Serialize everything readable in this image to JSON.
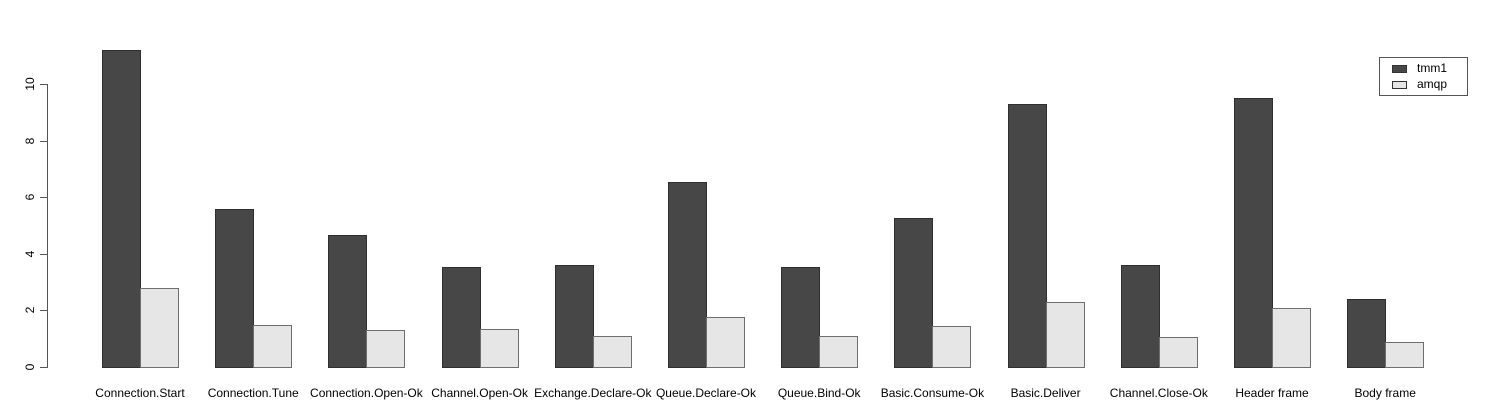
{
  "chart_data": {
    "type": "bar",
    "title": "",
    "xlabel": "",
    "ylabel": "",
    "categories": [
      "Connection.Start",
      "Connection.Tune",
      "Connection.Open-Ok",
      "Channel.Open-Ok",
      "Exchange.Declare-Ok",
      "Queue.Declare-Ok",
      "Queue.Bind-Ok",
      "Basic.Consume-Ok",
      "Basic.Deliver",
      "Channel.Close-Ok",
      "Header frame",
      "Body frame"
    ],
    "series": [
      {
        "name": "tmm1",
        "color": "#474747",
        "values": [
          11.2,
          5.6,
          4.65,
          3.55,
          3.6,
          6.55,
          3.55,
          5.25,
          9.3,
          3.6,
          9.5,
          2.4
        ]
      },
      {
        "name": "amqp",
        "color": "#e6e6e6",
        "values": [
          2.8,
          1.5,
          1.3,
          1.35,
          1.1,
          1.75,
          1.1,
          1.45,
          2.3,
          1.05,
          2.1,
          0.9
        ]
      }
    ],
    "yticks": [
      0,
      2,
      4,
      6,
      8,
      10
    ],
    "ylim": [
      0,
      11.3
    ],
    "grid": false,
    "legend_position": "top-right",
    "axis_color": "#555555",
    "background_color": "#ffffff"
  }
}
